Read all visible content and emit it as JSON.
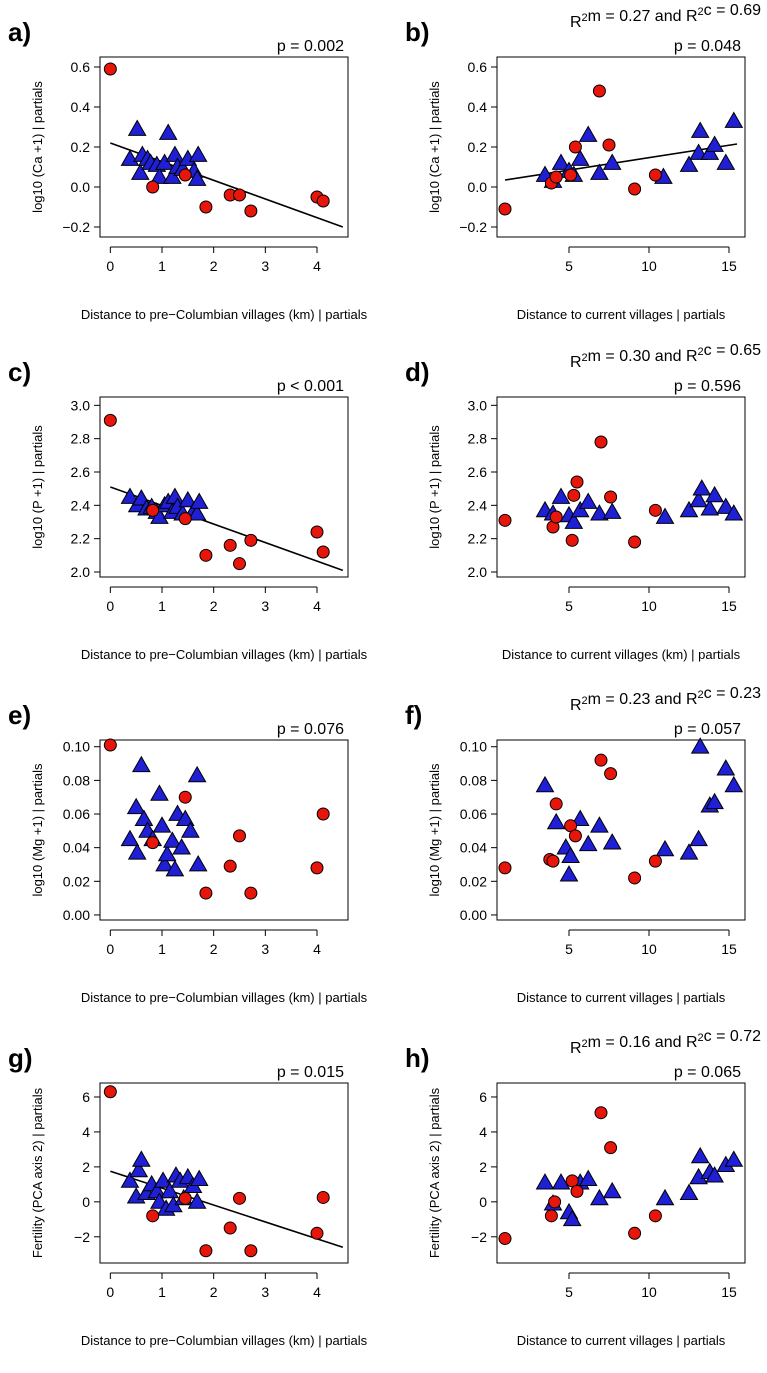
{
  "colors": {
    "point_fill": "#e8150b",
    "triangle_fill": "#1f1fd6",
    "stroke": "#000000",
    "background": "#ffffff"
  },
  "chart_data": [
    {
      "type": "scatter",
      "panel_label": "a)",
      "p_text": "p = 0.002",
      "r2_text": "",
      "xlabel": "Distance to pre−Columbian villages (km) | partials",
      "ylabel": "log10 (Ca +1) | partials",
      "xlim": [
        -0.2,
        4.6
      ],
      "ylim": [
        -0.25,
        0.65
      ],
      "xticks": [
        0,
        1,
        2,
        3,
        4
      ],
      "yticks": [
        -0.2,
        0.0,
        0.2,
        0.4,
        0.6
      ],
      "ytick_labels": [
        "−0.2",
        "0.0",
        "0.2",
        "0.4",
        "0.6"
      ],
      "grid": false,
      "legend": "none",
      "fit_line": [
        [
          0,
          0.22
        ],
        [
          4.5,
          -0.2
        ]
      ],
      "circles": [
        [
          0,
          0.59
        ],
        [
          0.82,
          0.0
        ],
        [
          1.45,
          0.06
        ],
        [
          1.85,
          -0.1
        ],
        [
          2.32,
          -0.04
        ],
        [
          2.5,
          -0.04
        ],
        [
          2.72,
          -0.12
        ],
        [
          4.0,
          -0.05
        ],
        [
          4.12,
          -0.07
        ]
      ],
      "triangles": [
        [
          0.38,
          0.14
        ],
        [
          0.52,
          0.29
        ],
        [
          0.58,
          0.07
        ],
        [
          0.62,
          0.16
        ],
        [
          0.72,
          0.14
        ],
        [
          0.78,
          0.12
        ],
        [
          0.9,
          0.11
        ],
        [
          0.95,
          0.05
        ],
        [
          1.05,
          0.12
        ],
        [
          1.12,
          0.27
        ],
        [
          1.2,
          0.05
        ],
        [
          1.25,
          0.16
        ],
        [
          1.3,
          0.1
        ],
        [
          1.4,
          0.09
        ],
        [
          1.5,
          0.14
        ],
        [
          1.62,
          0.08
        ],
        [
          1.68,
          0.04
        ],
        [
          1.7,
          0.16
        ]
      ]
    },
    {
      "type": "scatter",
      "panel_label": "b)",
      "p_text": "p = 0.048",
      "r2_text": "R²m = 0.27 and R²c = 0.69",
      "xlabel": "Distance to current villages | partials",
      "ylabel": "log10 (Ca +1) | partials",
      "xlim": [
        0.5,
        16.0
      ],
      "ylim": [
        -0.25,
        0.65
      ],
      "xticks": [
        5,
        10,
        15
      ],
      "yticks": [
        -0.2,
        0.0,
        0.2,
        0.4,
        0.6
      ],
      "ytick_labels": [
        "−0.2",
        "0.0",
        "0.2",
        "0.4",
        "0.6"
      ],
      "grid": false,
      "legend": "none",
      "fit_line": [
        [
          1.0,
          0.035
        ],
        [
          15.5,
          0.215
        ]
      ],
      "circles": [
        [
          1.0,
          -0.11
        ],
        [
          3.9,
          0.02
        ],
        [
          4.2,
          0.05
        ],
        [
          5.1,
          0.06
        ],
        [
          5.4,
          0.2
        ],
        [
          6.9,
          0.48
        ],
        [
          7.5,
          0.21
        ],
        [
          9.1,
          -0.01
        ],
        [
          10.4,
          0.06
        ]
      ],
      "triangles": [
        [
          3.5,
          0.06
        ],
        [
          4.0,
          0.03
        ],
        [
          4.5,
          0.12
        ],
        [
          5.0,
          0.08
        ],
        [
          5.3,
          0.06
        ],
        [
          5.7,
          0.14
        ],
        [
          6.2,
          0.26
        ],
        [
          6.9,
          0.07
        ],
        [
          7.7,
          0.12
        ],
        [
          10.9,
          0.05
        ],
        [
          12.5,
          0.11
        ],
        [
          13.1,
          0.17
        ],
        [
          13.2,
          0.28
        ],
        [
          13.8,
          0.17
        ],
        [
          14.1,
          0.21
        ],
        [
          14.8,
          0.12
        ],
        [
          15.3,
          0.33
        ]
      ]
    },
    {
      "type": "scatter",
      "panel_label": "c)",
      "p_text": "p < 0.001",
      "r2_text": "",
      "xlabel": "Distance to pre−Columbian villages (km) | partials",
      "ylabel": "log10 (P +1) | partials",
      "xlim": [
        -0.2,
        4.6
      ],
      "ylim": [
        1.97,
        3.05
      ],
      "xticks": [
        0,
        1,
        2,
        3,
        4
      ],
      "yticks": [
        2.0,
        2.2,
        2.4,
        2.6,
        2.8,
        3.0
      ],
      "ytick_labels": [
        "2.0",
        "2.2",
        "2.4",
        "2.6",
        "2.8",
        "3.0"
      ],
      "grid": false,
      "legend": "none",
      "fit_line": [
        [
          0,
          2.51
        ],
        [
          4.5,
          2.01
        ]
      ],
      "circles": [
        [
          0,
          2.91
        ],
        [
          0.82,
          2.37
        ],
        [
          1.45,
          2.32
        ],
        [
          1.85,
          2.1
        ],
        [
          2.32,
          2.16
        ],
        [
          2.5,
          2.05
        ],
        [
          2.72,
          2.19
        ],
        [
          4.0,
          2.24
        ],
        [
          4.12,
          2.12
        ]
      ],
      "triangles": [
        [
          0.38,
          2.45
        ],
        [
          0.52,
          2.4
        ],
        [
          0.6,
          2.44
        ],
        [
          0.7,
          2.38
        ],
        [
          0.8,
          2.39
        ],
        [
          0.9,
          2.36
        ],
        [
          0.95,
          2.33
        ],
        [
          1.05,
          2.4
        ],
        [
          1.12,
          2.42
        ],
        [
          1.2,
          2.36
        ],
        [
          1.25,
          2.45
        ],
        [
          1.3,
          2.39
        ],
        [
          1.4,
          2.35
        ],
        [
          1.5,
          2.43
        ],
        [
          1.62,
          2.37
        ],
        [
          1.68,
          2.35
        ],
        [
          1.72,
          2.42
        ]
      ]
    },
    {
      "type": "scatter",
      "panel_label": "d)",
      "p_text": "p = 0.596",
      "r2_text": "R²m = 0.30 and R²c = 0.65",
      "xlabel": "Distance to current villages (km) | partials",
      "ylabel": "log10 (P +1) | partials",
      "xlim": [
        0.5,
        16.0
      ],
      "ylim": [
        1.97,
        3.05
      ],
      "xticks": [
        5,
        10,
        15
      ],
      "yticks": [
        2.0,
        2.2,
        2.4,
        2.6,
        2.8,
        3.0
      ],
      "ytick_labels": [
        "2.0",
        "2.2",
        "2.4",
        "2.6",
        "2.8",
        "3.0"
      ],
      "grid": false,
      "legend": "none",
      "fit_line": [],
      "circles": [
        [
          1.0,
          2.31
        ],
        [
          4.0,
          2.27
        ],
        [
          4.2,
          2.33
        ],
        [
          5.2,
          2.19
        ],
        [
          5.5,
          2.54
        ],
        [
          5.3,
          2.46
        ],
        [
          7.0,
          2.78
        ],
        [
          7.6,
          2.45
        ],
        [
          9.1,
          2.18
        ],
        [
          10.4,
          2.37
        ]
      ],
      "triangles": [
        [
          3.5,
          2.37
        ],
        [
          4.0,
          2.35
        ],
        [
          4.5,
          2.45
        ],
        [
          5.0,
          2.34
        ],
        [
          5.3,
          2.3
        ],
        [
          5.7,
          2.37
        ],
        [
          6.2,
          2.42
        ],
        [
          6.9,
          2.35
        ],
        [
          7.7,
          2.36
        ],
        [
          11.0,
          2.33
        ],
        [
          12.5,
          2.37
        ],
        [
          13.1,
          2.43
        ],
        [
          13.3,
          2.5
        ],
        [
          13.8,
          2.38
        ],
        [
          14.1,
          2.46
        ],
        [
          14.8,
          2.39
        ],
        [
          15.3,
          2.35
        ]
      ]
    },
    {
      "type": "scatter",
      "panel_label": "e)",
      "p_text": "p = 0.076",
      "r2_text": "",
      "xlabel": "Distance to pre−Columbian villages (km) | partials",
      "ylabel": "log10 (Mg +1) | partials",
      "xlim": [
        -0.2,
        4.6
      ],
      "ylim": [
        -0.003,
        0.104
      ],
      "xticks": [
        0,
        1,
        2,
        3,
        4
      ],
      "yticks": [
        0.0,
        0.02,
        0.04,
        0.06,
        0.08,
        0.1
      ],
      "ytick_labels": [
        "0.00",
        "0.02",
        "0.04",
        "0.06",
        "0.08",
        "0.10"
      ],
      "grid": false,
      "legend": "none",
      "fit_line": [],
      "circles": [
        [
          0,
          0.101
        ],
        [
          0.82,
          0.043
        ],
        [
          1.45,
          0.07
        ],
        [
          1.85,
          0.013
        ],
        [
          2.32,
          0.029
        ],
        [
          2.5,
          0.047
        ],
        [
          2.72,
          0.013
        ],
        [
          4.0,
          0.028
        ],
        [
          4.12,
          0.06
        ]
      ],
      "triangles": [
        [
          0.38,
          0.045
        ],
        [
          0.5,
          0.064
        ],
        [
          0.52,
          0.037
        ],
        [
          0.6,
          0.089
        ],
        [
          0.65,
          0.057
        ],
        [
          0.72,
          0.05
        ],
        [
          0.82,
          0.045
        ],
        [
          0.95,
          0.072
        ],
        [
          1.0,
          0.053
        ],
        [
          1.05,
          0.03
        ],
        [
          1.1,
          0.036
        ],
        [
          1.2,
          0.044
        ],
        [
          1.25,
          0.027
        ],
        [
          1.3,
          0.06
        ],
        [
          1.38,
          0.04
        ],
        [
          1.45,
          0.057
        ],
        [
          1.55,
          0.05
        ],
        [
          1.68,
          0.083
        ],
        [
          1.7,
          0.03
        ]
      ]
    },
    {
      "type": "scatter",
      "panel_label": "f)",
      "p_text": "p = 0.057",
      "r2_text": "R²m = 0.23 and R²c = 0.23",
      "xlabel": "Distance to current villages | partials",
      "ylabel": "log10 (Mg +1) | partials",
      "xlim": [
        0.5,
        16.0
      ],
      "ylim": [
        -0.003,
        0.104
      ],
      "xticks": [
        5,
        10,
        15
      ],
      "yticks": [
        0.0,
        0.02,
        0.04,
        0.06,
        0.08,
        0.1
      ],
      "ytick_labels": [
        "0.00",
        "0.02",
        "0.04",
        "0.06",
        "0.08",
        "0.10"
      ],
      "grid": false,
      "legend": "none",
      "fit_line": [],
      "circles": [
        [
          1.0,
          0.028
        ],
        [
          3.8,
          0.033
        ],
        [
          4.0,
          0.032
        ],
        [
          4.2,
          0.066
        ],
        [
          5.1,
          0.053
        ],
        [
          5.4,
          0.047
        ],
        [
          7.0,
          0.092
        ],
        [
          7.6,
          0.084
        ],
        [
          9.1,
          0.022
        ],
        [
          10.4,
          0.032
        ]
      ],
      "triangles": [
        [
          3.5,
          0.077
        ],
        [
          4.2,
          0.055
        ],
        [
          4.8,
          0.04
        ],
        [
          5.0,
          0.024
        ],
        [
          5.1,
          0.035
        ],
        [
          5.7,
          0.057
        ],
        [
          6.2,
          0.042
        ],
        [
          6.9,
          0.053
        ],
        [
          7.7,
          0.043
        ],
        [
          11.0,
          0.039
        ],
        [
          12.5,
          0.037
        ],
        [
          13.1,
          0.045
        ],
        [
          13.2,
          0.1
        ],
        [
          13.8,
          0.065
        ],
        [
          14.1,
          0.067
        ],
        [
          14.8,
          0.087
        ],
        [
          15.3,
          0.077
        ]
      ]
    },
    {
      "type": "scatter",
      "panel_label": "g)",
      "p_text": "p = 0.015",
      "r2_text": "",
      "xlabel": "Distance to pre−Columbian villages (km) | partials",
      "ylabel": "Fertility (PCA axis 2) | partials",
      "xlim": [
        -0.2,
        4.6
      ],
      "ylim": [
        -3.5,
        6.8
      ],
      "xticks": [
        0,
        1,
        2,
        3,
        4
      ],
      "yticks": [
        -2,
        0,
        2,
        4,
        6
      ],
      "ytick_labels": [
        "−2",
        "0",
        "2",
        "4",
        "6"
      ],
      "grid": false,
      "legend": "none",
      "fit_line": [
        [
          0,
          1.75
        ],
        [
          4.5,
          -2.6
        ]
      ],
      "circles": [
        [
          0,
          6.3
        ],
        [
          0.82,
          -0.8
        ],
        [
          1.45,
          0.2
        ],
        [
          1.85,
          -2.8
        ],
        [
          2.32,
          -1.5
        ],
        [
          2.5,
          0.2
        ],
        [
          2.72,
          -2.8
        ],
        [
          4.0,
          -1.8
        ],
        [
          4.12,
          0.25
        ]
      ],
      "triangles": [
        [
          0.38,
          1.2
        ],
        [
          0.5,
          0.3
        ],
        [
          0.55,
          1.8
        ],
        [
          0.6,
          2.4
        ],
        [
          0.7,
          0.5
        ],
        [
          0.8,
          1.0
        ],
        [
          0.9,
          0.6
        ],
        [
          0.95,
          0.0
        ],
        [
          1.02,
          1.2
        ],
        [
          1.08,
          -0.4
        ],
        [
          1.15,
          0.6
        ],
        [
          1.22,
          -0.2
        ],
        [
          1.27,
          1.5
        ],
        [
          1.35,
          1.2
        ],
        [
          1.42,
          0.2
        ],
        [
          1.5,
          1.4
        ],
        [
          1.6,
          0.9
        ],
        [
          1.68,
          0.0
        ],
        [
          1.72,
          1.3
        ]
      ]
    },
    {
      "type": "scatter",
      "panel_label": "h)",
      "p_text": "p = 0.065",
      "r2_text": "R²m = 0.16 and R²c = 0.72",
      "xlabel": "Distance to current villages | partials",
      "ylabel": "Fertility (PCA axis 2) | partials",
      "xlim": [
        0.5,
        16.0
      ],
      "ylim": [
        -3.5,
        6.8
      ],
      "xticks": [
        5,
        10,
        15
      ],
      "yticks": [
        -2,
        0,
        2,
        4,
        6
      ],
      "ytick_labels": [
        "−2",
        "0",
        "2",
        "4",
        "6"
      ],
      "grid": false,
      "legend": "none",
      "fit_line": [],
      "circles": [
        [
          1.0,
          -2.1
        ],
        [
          3.9,
          -0.8
        ],
        [
          4.1,
          0.0
        ],
        [
          5.2,
          1.2
        ],
        [
          5.5,
          0.6
        ],
        [
          7.0,
          5.1
        ],
        [
          7.6,
          3.1
        ],
        [
          9.1,
          -1.8
        ],
        [
          10.4,
          -0.8
        ]
      ],
      "triangles": [
        [
          3.5,
          1.1
        ],
        [
          4.0,
          -0.1
        ],
        [
          4.5,
          1.1
        ],
        [
          5.0,
          -0.6
        ],
        [
          5.2,
          -1.0
        ],
        [
          5.7,
          1.1
        ],
        [
          6.2,
          1.3
        ],
        [
          6.9,
          0.2
        ],
        [
          7.7,
          0.6
        ],
        [
          11.0,
          0.2
        ],
        [
          12.5,
          0.5
        ],
        [
          13.1,
          1.4
        ],
        [
          13.2,
          2.6
        ],
        [
          13.8,
          1.7
        ],
        [
          14.1,
          1.5
        ],
        [
          14.8,
          2.1
        ],
        [
          15.3,
          2.4
        ]
      ]
    }
  ]
}
